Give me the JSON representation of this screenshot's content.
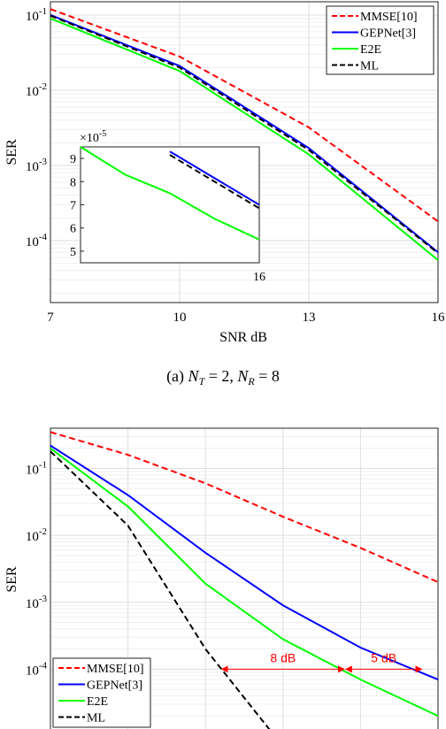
{
  "chart_data": [
    {
      "type": "line",
      "caption_label": "(a)",
      "caption_math": {
        "nt_symbol": "N",
        "nt_sub": "T",
        "nt_value": "2",
        "nr_symbol": "N",
        "nr_sub": "R",
        "nr_value": "8"
      },
      "xlabel": "SNR dB",
      "ylabel": "SER",
      "x_scale": "linear",
      "y_scale": "log",
      "xlim": [
        7,
        16
      ],
      "ylim": [
        1.5e-05,
        0.15
      ],
      "x_ticks": [
        7,
        10,
        13,
        16
      ],
      "x_tick_labels": [
        "7",
        "10",
        "13",
        "16"
      ],
      "y_ticks": [
        0.1,
        0.01,
        0.001,
        0.0001
      ],
      "y_tick_labels": [
        {
          "base": "10",
          "exp": "-1"
        },
        {
          "base": "10",
          "exp": "-2"
        },
        {
          "base": "10",
          "exp": "-3"
        },
        {
          "base": "10",
          "exp": "-4"
        }
      ],
      "grid": true,
      "legend_placement": "top-right",
      "series": [
        {
          "name": "MMSE[10]",
          "color": "#ff0000",
          "dash": "dashed",
          "x": [
            7,
            10,
            13,
            16
          ],
          "y": [
            0.12,
            0.028,
            0.0032,
            0.00018
          ]
        },
        {
          "name": "GEPNet[3]",
          "color": "#0000ff",
          "dash": "solid",
          "x": [
            7,
            10,
            13,
            16
          ],
          "y": [
            0.1,
            0.021,
            0.0017,
            7e-05
          ]
        },
        {
          "name": "E2E",
          "color": "#00ff00",
          "dash": "solid",
          "x": [
            7,
            10,
            13,
            16
          ],
          "y": [
            0.09,
            0.018,
            0.0014,
            5.5e-05
          ]
        },
        {
          "name": "ML",
          "color": "#000000",
          "dash": "dashed",
          "x": [
            7,
            10,
            13,
            16
          ],
          "y": [
            0.098,
            0.02,
            0.0016,
            6.8e-05
          ]
        }
      ],
      "inset": {
        "multiplier_prefix": "×10",
        "multiplier_exp": "-5",
        "ylim": [
          4.5,
          9.5
        ],
        "y_ticks": [
          "5",
          "6",
          "7",
          "8",
          "9"
        ],
        "xlim": [
          14,
          16
        ],
        "x_tick_label": "16",
        "series": [
          {
            "name": "E2E",
            "x": [
              14,
              14.5,
              15,
              15.5,
              16
            ],
            "y": [
              9.5,
              8.3,
              7.5,
              6.4,
              5.5
            ]
          },
          {
            "name": "GEPNet[3]",
            "x": [
              15,
              16
            ],
            "y": [
              9.3,
              7.0
            ]
          },
          {
            "name": "ML",
            "x": [
              15,
              16
            ],
            "y": [
              9.15,
              6.85
            ]
          }
        ]
      }
    },
    {
      "type": "line",
      "ylabel": "SER",
      "x_scale": "linear",
      "y_scale": "log",
      "xlim": [
        0,
        25
      ],
      "ylim": [
        1e-05,
        0.4
      ],
      "y_ticks": [
        0.1,
        0.01,
        0.001,
        0.0001
      ],
      "y_tick_labels": [
        {
          "base": "10",
          "exp": "-1"
        },
        {
          "base": "10",
          "exp": "-2"
        },
        {
          "base": "10",
          "exp": "-3"
        },
        {
          "base": "10",
          "exp": "-4"
        }
      ],
      "x_gridlines": [
        5,
        10,
        15,
        20
      ],
      "grid": true,
      "legend_placement": "bottom-left",
      "series": [
        {
          "name": "MMSE[10]",
          "color": "#ff0000",
          "dash": "dashed",
          "x": [
            0,
            5,
            10,
            15,
            20,
            25
          ],
          "y": [
            0.35,
            0.16,
            0.06,
            0.019,
            0.0065,
            0.002
          ]
        },
        {
          "name": "GEPNet[3]",
          "color": "#0000ff",
          "dash": "solid",
          "x": [
            0,
            5,
            10,
            15,
            20,
            25
          ],
          "y": [
            0.22,
            0.04,
            0.0055,
            0.0009,
            0.00021,
            7e-05
          ]
        },
        {
          "name": "E2E",
          "color": "#00ff00",
          "dash": "solid",
          "x": [
            0,
            5,
            10,
            15,
            20,
            25
          ],
          "y": [
            0.2,
            0.027,
            0.0019,
            0.00028,
            7e-05,
            2e-05
          ]
        },
        {
          "name": "ML",
          "color": "#000000",
          "dash": "dashed",
          "x": [
            0,
            5,
            10,
            15
          ],
          "y": [
            0.18,
            0.014,
            0.0002,
            7e-06
          ]
        }
      ],
      "annotations": [
        {
          "text": "8 dB",
          "color": "#ff0000",
          "x_from": 11,
          "x_to": 19,
          "y": 0.0001
        },
        {
          "text": "5 dB",
          "color": "#ff0000",
          "x_from": 19,
          "x_to": 24,
          "y": 0.0001
        }
      ]
    }
  ]
}
